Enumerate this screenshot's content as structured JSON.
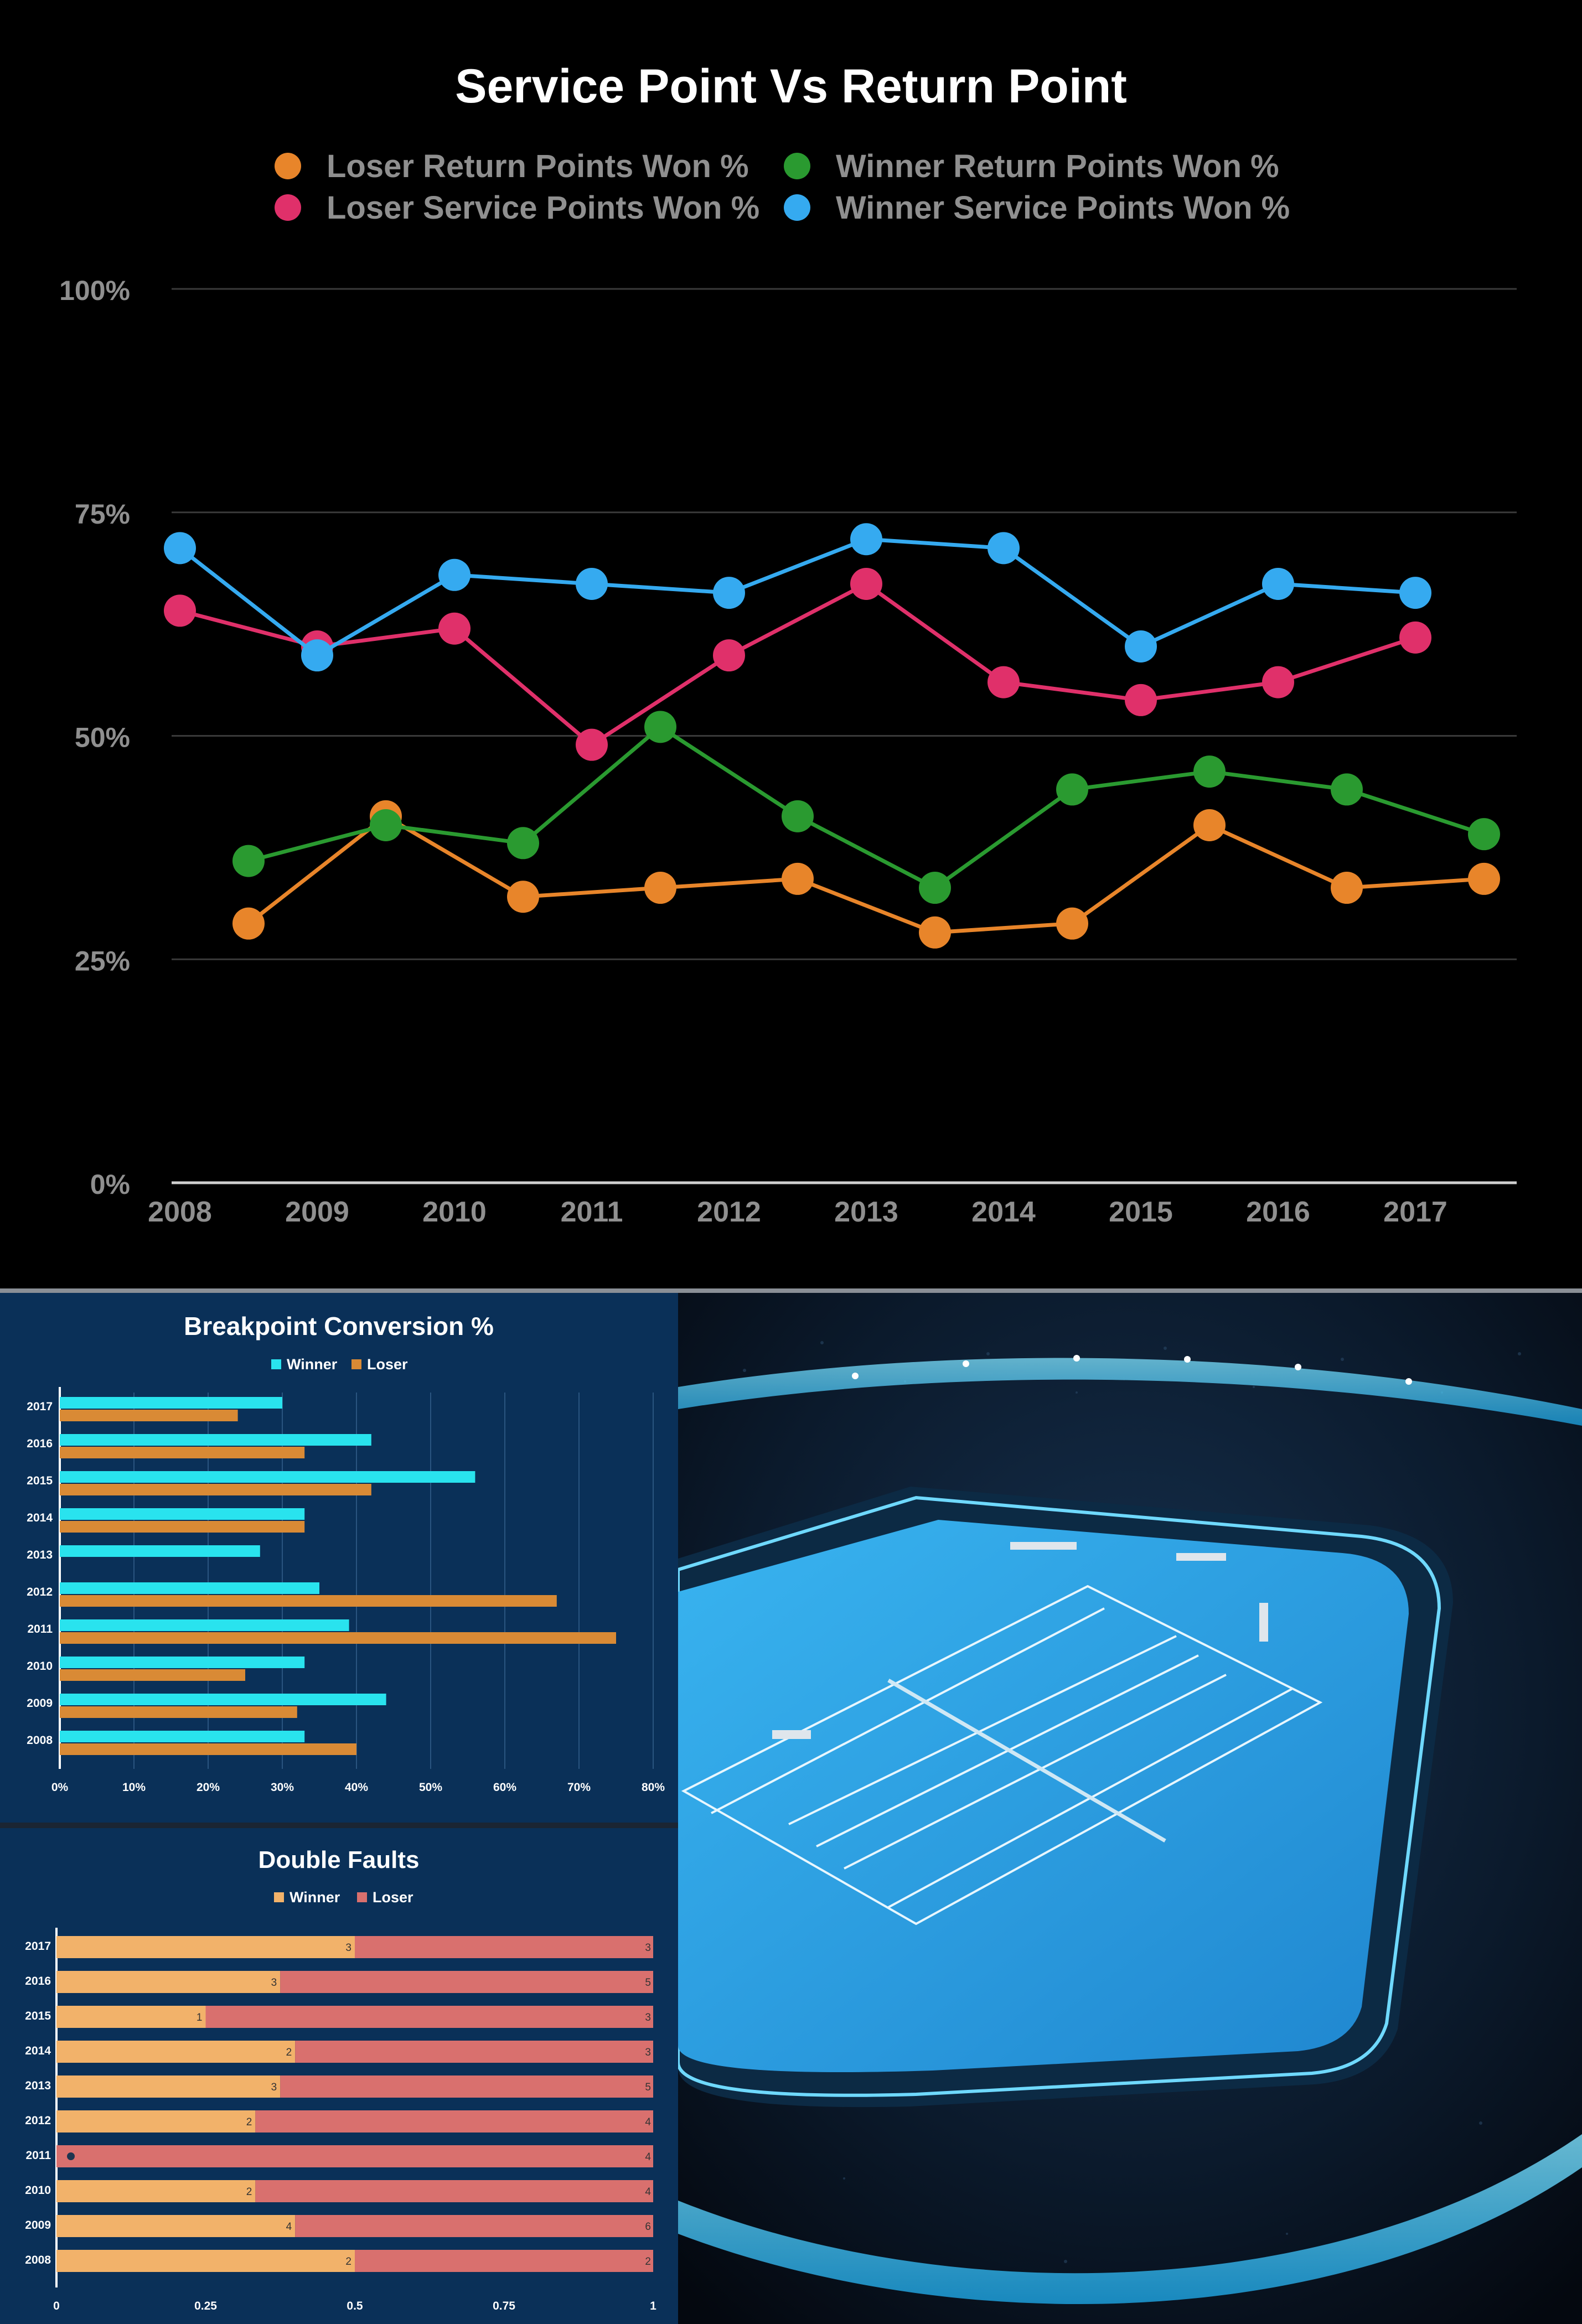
{
  "chart_data": [
    {
      "type": "line",
      "title": "Service Point Vs Return Point",
      "categories": [
        "2008",
        "2009",
        "2010",
        "2011",
        "2012",
        "2013",
        "2014",
        "2015",
        "2016",
        "2017"
      ],
      "yticks": [
        "0%",
        "25%",
        "50%",
        "75%",
        "100%"
      ],
      "ylim": [
        0,
        100
      ],
      "grid": true,
      "legend_position": "top",
      "series": [
        {
          "name": "Loser Return Points Won %",
          "color": "#e8852a",
          "offset": 0.5,
          "values": [
            29,
            41,
            32,
            33,
            34,
            28,
            29,
            40,
            33,
            34
          ]
        },
        {
          "name": "Winner Return Points Won %",
          "color": "#2a9a30",
          "offset": 0.5,
          "values": [
            36,
            40,
            38,
            51,
            41,
            33,
            44,
            46,
            44,
            39
          ]
        },
        {
          "name": "Loser Service Points Won %",
          "color": "#e0306a",
          "offset": 0,
          "values": [
            64,
            60,
            62,
            49,
            59,
            67,
            56,
            54,
            56,
            61
          ]
        },
        {
          "name": "Winner Service Points Won %",
          "color": "#35aaf0",
          "offset": 0,
          "values": [
            71,
            59,
            68,
            67,
            66,
            72,
            71,
            60,
            67,
            66
          ]
        }
      ]
    },
    {
      "type": "bar",
      "orientation": "horizontal",
      "title": "Breakpoint Conversion %",
      "categories": [
        "2017",
        "2016",
        "2015",
        "2014",
        "2013",
        "2012",
        "2011",
        "2010",
        "2009",
        "2008"
      ],
      "xticks": [
        "0%",
        "10%",
        "20%",
        "30%",
        "40%",
        "50%",
        "60%",
        "70%",
        "80%"
      ],
      "xlim": [
        0,
        80
      ],
      "legend_position": "top",
      "series": [
        {
          "name": "Winner",
          "color": "#29e3ee",
          "values": [
            30,
            42,
            56,
            33,
            27,
            35,
            39,
            33,
            44,
            33
          ]
        },
        {
          "name": "Loser",
          "color": "#d98a35",
          "values": [
            24,
            33,
            42,
            33,
            0,
            67,
            75,
            25,
            32,
            40
          ]
        }
      ]
    },
    {
      "type": "bar",
      "orientation": "horizontal",
      "stacked": "percent",
      "title": "Double Faults",
      "categories": [
        "2017",
        "2016",
        "2015",
        "2014",
        "2013",
        "2012",
        "2011",
        "2010",
        "2009",
        "2008"
      ],
      "xticks": [
        "0",
        "0.25",
        "0.5",
        "0.75",
        "1"
      ],
      "xlim": [
        0,
        1
      ],
      "legend_position": "top",
      "series": [
        {
          "name": "Winner",
          "color": "#f2b26a",
          "values": [
            3,
            3,
            1,
            2,
            3,
            2,
            0,
            2,
            4,
            2
          ]
        },
        {
          "name": "Loser",
          "color": "#d9706e",
          "values": [
            3,
            5,
            3,
            3,
            5,
            4,
            4,
            4,
            6,
            2
          ]
        }
      ]
    }
  ],
  "colors": {
    "background": "#000000",
    "panel_blue": "#0a3058",
    "axis_text": "#8f8f8f"
  },
  "image": {
    "icon": "tennis-stadium-photo"
  }
}
